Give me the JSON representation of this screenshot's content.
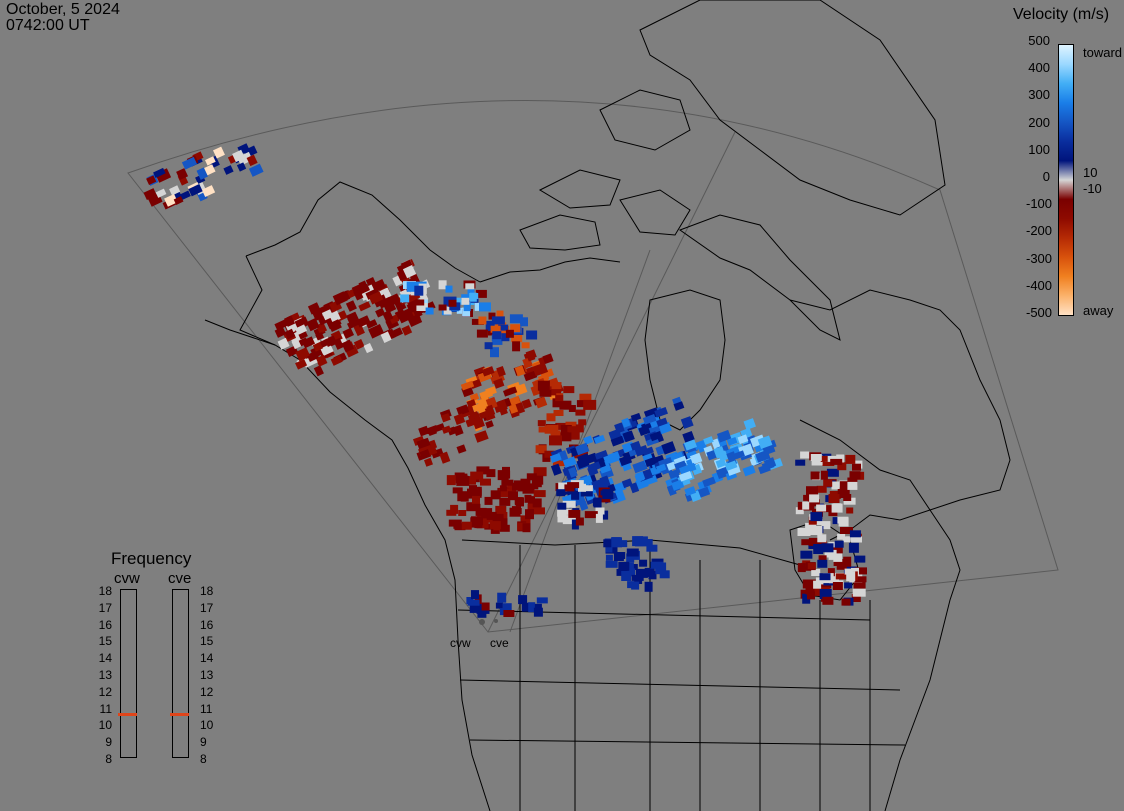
{
  "header": {
    "date": "October, 5 2024",
    "time": "0742:00 UT"
  },
  "colors": {
    "background": "#7f7f7f",
    "toward": [
      "#dff4ff",
      "#9bd8ff",
      "#42aef5",
      "#1a7ee8",
      "#1556c4",
      "#0a2e9e",
      "#00147c"
    ],
    "away": [
      "#7a0000",
      "#8e0a00",
      "#b52a05",
      "#d8520c",
      "#f08020",
      "#fbb26b",
      "#ffe1c4"
    ],
    "ground_scatter": "#d5d5d5",
    "frequency_marker": "#e0451a"
  },
  "legend": {
    "title": "Velocity (m/s)",
    "ticks": [
      {
        "value": "500",
        "label": ""
      },
      {
        "value": "400",
        "label": ""
      },
      {
        "value": "300",
        "label": ""
      },
      {
        "value": "200",
        "label": ""
      },
      {
        "value": "100",
        "label": ""
      },
      {
        "value": "0",
        "label": ""
      },
      {
        "value": "-100",
        "label": ""
      },
      {
        "value": "-200",
        "label": ""
      },
      {
        "value": "-300",
        "label": ""
      },
      {
        "value": "-400",
        "label": ""
      },
      {
        "value": "-500",
        "label": ""
      }
    ],
    "right_labels": [
      "toward",
      "10",
      "-10",
      "away"
    ]
  },
  "frequency": {
    "title": "Frequency",
    "radars": [
      {
        "name": "cvw",
        "value": 11
      },
      {
        "name": "cve",
        "value": 11
      }
    ],
    "scale": [
      "18",
      "17",
      "16",
      "15",
      "14",
      "13",
      "12",
      "11",
      "10",
      "9",
      "8"
    ]
  },
  "sites": [
    "cvw",
    "cve"
  ]
}
